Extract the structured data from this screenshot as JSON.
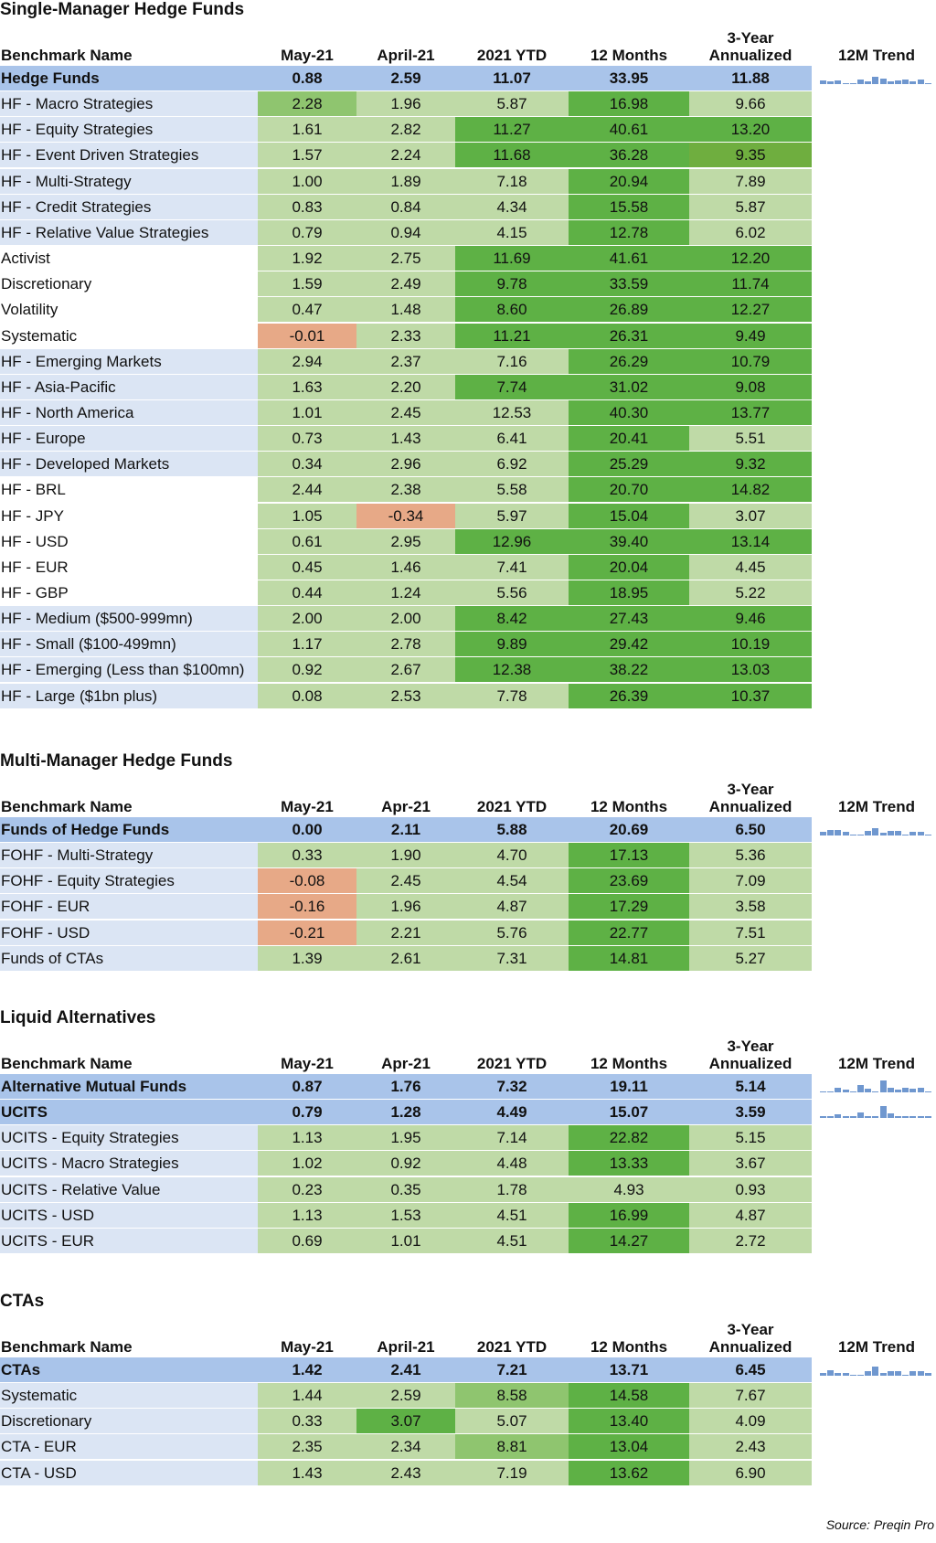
{
  "colors": {
    "name_blue": "#dbe5f4",
    "head_blue": "#a9c4ea",
    "light_green": "#bfdaa7",
    "mid_green": "#8fc56f",
    "dark_green": "#5eb145",
    "olive_green": "#6fae3f",
    "salmon": "#e7a987"
  },
  "source": "Source: Preqin Pro",
  "sections": [
    {
      "title": "Single-Manager Hedge Funds",
      "headers": {
        "name": "Benchmark Name",
        "cols": [
          "May-21",
          "April-21",
          "2021 YTD",
          "12 Months",
          "3-Year\nAnnualized"
        ],
        "trend": "12M Trend"
      },
      "rows": [
        {
          "name": "Hedge Funds",
          "values": [
            "0.88",
            "2.59",
            "11.07",
            "33.95",
            "11.88"
          ],
          "bold": true,
          "trend": [
            3,
            2,
            3,
            1,
            1,
            4,
            2,
            6,
            5,
            2,
            3,
            4,
            2,
            4,
            1
          ],
          "fills": [
            "H",
            "H",
            "H",
            "H",
            "H"
          ],
          "nameFill": "H"
        },
        {
          "name": "HF - Macro Strategies",
          "values": [
            "2.28",
            "1.96",
            "5.87",
            "16.98",
            "9.66"
          ],
          "fills": [
            "M",
            "L",
            "L",
            "D",
            "L"
          ],
          "nameFill": "N"
        },
        {
          "name": "HF - Equity Strategies",
          "values": [
            "1.61",
            "2.82",
            "11.27",
            "40.61",
            "13.20"
          ],
          "fills": [
            "L",
            "L",
            "D",
            "D",
            "D"
          ],
          "nameFill": "N"
        },
        {
          "name": "HF - Event Driven Strategies",
          "values": [
            "1.57",
            "2.24",
            "11.68",
            "36.28",
            "9.35"
          ],
          "fills": [
            "L",
            "L",
            "D",
            "D",
            "O"
          ],
          "nameFill": "N"
        },
        {
          "name": "HF - Multi-Strategy",
          "values": [
            "1.00",
            "1.89",
            "7.18",
            "20.94",
            "7.89"
          ],
          "fills": [
            "L",
            "L",
            "L",
            "D",
            "L"
          ],
          "nameFill": "N"
        },
        {
          "name": "HF - Credit Strategies",
          "values": [
            "0.83",
            "0.84",
            "4.34",
            "15.58",
            "5.87"
          ],
          "fills": [
            "L",
            "L",
            "L",
            "D",
            "L"
          ],
          "nameFill": "N"
        },
        {
          "name": "HF - Relative Value Strategies",
          "values": [
            "0.79",
            "0.94",
            "4.15",
            "12.78",
            "6.02"
          ],
          "fills": [
            "L",
            "L",
            "L",
            "D",
            "L"
          ],
          "nameFill": "N"
        },
        {
          "name": "Activist",
          "values": [
            "1.92",
            "2.75",
            "11.69",
            "41.61",
            "12.20"
          ],
          "fills": [
            "L",
            "L",
            "D",
            "D",
            "D"
          ],
          "nameFill": "W"
        },
        {
          "name": "Discretionary",
          "values": [
            "1.59",
            "2.49",
            "9.78",
            "33.59",
            "11.74"
          ],
          "fills": [
            "L",
            "L",
            "D",
            "D",
            "D"
          ],
          "nameFill": "W"
        },
        {
          "name": "Volatility",
          "values": [
            "0.47",
            "1.48",
            "8.60",
            "26.89",
            "12.27"
          ],
          "fills": [
            "L",
            "L",
            "D",
            "D",
            "D"
          ],
          "nameFill": "W"
        },
        {
          "name": "Systematic",
          "values": [
            "-0.01",
            "2.33",
            "11.21",
            "26.31",
            "9.49"
          ],
          "fills": [
            "S",
            "L",
            "D",
            "D",
            "D"
          ],
          "nameFill": "W"
        },
        {
          "name": "HF - Emerging Markets",
          "values": [
            "2.94",
            "2.37",
            "7.16",
            "26.29",
            "10.79"
          ],
          "fills": [
            "L",
            "L",
            "L",
            "D",
            "D"
          ],
          "nameFill": "N"
        },
        {
          "name": "HF - Asia-Pacific",
          "values": [
            "1.63",
            "2.20",
            "7.74",
            "31.02",
            "9.08"
          ],
          "fills": [
            "L",
            "L",
            "D",
            "D",
            "D"
          ],
          "nameFill": "N"
        },
        {
          "name": "HF - North America",
          "values": [
            "1.01",
            "2.45",
            "12.53",
            "40.30",
            "13.77"
          ],
          "fills": [
            "L",
            "L",
            "L",
            "D",
            "D"
          ],
          "nameFill": "N"
        },
        {
          "name": "HF - Europe",
          "values": [
            "0.73",
            "1.43",
            "6.41",
            "20.41",
            "5.51"
          ],
          "fills": [
            "L",
            "L",
            "L",
            "D",
            "L"
          ],
          "nameFill": "N"
        },
        {
          "name": "HF - Developed Markets",
          "values": [
            "0.34",
            "2.96",
            "6.92",
            "25.29",
            "9.32"
          ],
          "fills": [
            "L",
            "L",
            "L",
            "D",
            "D"
          ],
          "nameFill": "N"
        },
        {
          "name": "HF - BRL",
          "values": [
            "2.44",
            "2.38",
            "5.58",
            "20.70",
            "14.82"
          ],
          "fills": [
            "L",
            "L",
            "L",
            "D",
            "D"
          ],
          "nameFill": "W"
        },
        {
          "name": "HF - JPY",
          "values": [
            "1.05",
            "-0.34",
            "5.97",
            "15.04",
            "3.07"
          ],
          "fills": [
            "L",
            "S",
            "L",
            "D",
            "L"
          ],
          "nameFill": "W"
        },
        {
          "name": "HF - USD",
          "values": [
            "0.61",
            "2.95",
            "12.96",
            "39.40",
            "13.14"
          ],
          "fills": [
            "L",
            "L",
            "D",
            "D",
            "D"
          ],
          "nameFill": "W"
        },
        {
          "name": "HF - EUR",
          "values": [
            "0.45",
            "1.46",
            "7.41",
            "20.04",
            "4.45"
          ],
          "fills": [
            "L",
            "L",
            "L",
            "D",
            "L"
          ],
          "nameFill": "W"
        },
        {
          "name": "HF - GBP",
          "values": [
            "0.44",
            "1.24",
            "5.56",
            "18.95",
            "5.22"
          ],
          "fills": [
            "L",
            "L",
            "L",
            "D",
            "L"
          ],
          "nameFill": "W"
        },
        {
          "name": "HF - Medium ($500-999mn)",
          "values": [
            "2.00",
            "2.00",
            "8.42",
            "27.43",
            "9.46"
          ],
          "fills": [
            "L",
            "L",
            "D",
            "D",
            "D"
          ],
          "nameFill": "N"
        },
        {
          "name": "HF - Small ($100-499mn)",
          "values": [
            "1.17",
            "2.78",
            "9.89",
            "29.42",
            "10.19"
          ],
          "fills": [
            "L",
            "L",
            "D",
            "D",
            "D"
          ],
          "nameFill": "N"
        },
        {
          "name": "HF - Emerging (Less than $100mn)",
          "values": [
            "0.92",
            "2.67",
            "12.38",
            "38.22",
            "13.03"
          ],
          "fills": [
            "L",
            "L",
            "D",
            "D",
            "D"
          ],
          "nameFill": "N"
        },
        {
          "name": "HF - Large ($1bn plus)",
          "values": [
            "0.08",
            "2.53",
            "7.78",
            "26.39",
            "10.37"
          ],
          "fills": [
            "L",
            "L",
            "L",
            "D",
            "D"
          ],
          "nameFill": "N"
        }
      ]
    },
    {
      "title": "Multi-Manager Hedge Funds",
      "headers": {
        "name": "Benchmark Name",
        "cols": [
          "May-21",
          "Apr-21",
          "2021 YTD",
          "12 Months",
          "3-Year\nAnnualized"
        ],
        "trend": "12M Trend"
      },
      "rows": [
        {
          "name": "Funds of Hedge Funds",
          "values": [
            "0.00",
            "2.11",
            "5.88",
            "20.69",
            "6.50"
          ],
          "bold": true,
          "trend": [
            3,
            5,
            5,
            3,
            1,
            1,
            4,
            6,
            2,
            4,
            4,
            1,
            3,
            3,
            1
          ],
          "fills": [
            "H",
            "H",
            "H",
            "H",
            "H"
          ],
          "nameFill": "H"
        },
        {
          "name": "FOHF - Multi-Strategy",
          "values": [
            "0.33",
            "1.90",
            "4.70",
            "17.13",
            "5.36"
          ],
          "fills": [
            "L",
            "L",
            "L",
            "D",
            "L"
          ],
          "nameFill": "N"
        },
        {
          "name": "FOHF - Equity Strategies",
          "values": [
            "-0.08",
            "2.45",
            "4.54",
            "23.69",
            "7.09"
          ],
          "fills": [
            "S",
            "L",
            "L",
            "D",
            "L"
          ],
          "nameFill": "N"
        },
        {
          "name": "FOHF - EUR",
          "values": [
            "-0.16",
            "1.96",
            "4.87",
            "17.29",
            "3.58"
          ],
          "fills": [
            "S",
            "L",
            "L",
            "D",
            "L"
          ],
          "nameFill": "N"
        },
        {
          "name": "FOHF - USD",
          "values": [
            "-0.21",
            "2.21",
            "5.76",
            "22.77",
            "7.51"
          ],
          "fills": [
            "S",
            "L",
            "L",
            "D",
            "L"
          ],
          "nameFill": "N"
        },
        {
          "name": "Funds of CTAs",
          "values": [
            "1.39",
            "2.61",
            "7.31",
            "14.81",
            "5.27"
          ],
          "fills": [
            "L",
            "L",
            "L",
            "D",
            "L"
          ],
          "nameFill": "N"
        }
      ]
    },
    {
      "title": "Liquid Alternatives",
      "headers": {
        "name": "Benchmark Name",
        "cols": [
          "May-21",
          "Apr-21",
          "2021 YTD",
          "12 Months",
          "3-Year\nAnnualized"
        ],
        "trend": "12M Trend"
      },
      "rows": [
        {
          "name": "Alternative Mutual Funds",
          "values": [
            "0.87",
            "1.76",
            "7.32",
            "19.11",
            "5.14"
          ],
          "bold": true,
          "trend": [
            1,
            1,
            4,
            2,
            1,
            6,
            3,
            1,
            10,
            4,
            2,
            4,
            3,
            4,
            1
          ],
          "fills": [
            "H",
            "H",
            "H",
            "H",
            "H"
          ],
          "nameFill": "H"
        },
        {
          "name": "UCITS",
          "values": [
            "0.79",
            "1.28",
            "4.49",
            "15.07",
            "3.59"
          ],
          "bold": true,
          "trend": [
            2,
            2,
            3,
            2,
            2,
            5,
            2,
            2,
            10,
            4,
            2,
            2,
            2,
            2,
            2
          ],
          "fills": [
            "H",
            "H",
            "H",
            "H",
            "H"
          ],
          "nameFill": "H"
        },
        {
          "name": "UCITS - Equity Strategies",
          "values": [
            "1.13",
            "1.95",
            "7.14",
            "22.82",
            "5.15"
          ],
          "fills": [
            "L",
            "L",
            "L",
            "D",
            "L"
          ],
          "nameFill": "N"
        },
        {
          "name": "UCITS - Macro Strategies",
          "values": [
            "1.02",
            "0.92",
            "4.48",
            "13.33",
            "3.67"
          ],
          "fills": [
            "L",
            "L",
            "L",
            "D",
            "L"
          ],
          "nameFill": "N"
        },
        {
          "name": "UCITS - Relative Value",
          "values": [
            "0.23",
            "0.35",
            "1.78",
            "4.93",
            "0.93"
          ],
          "fills": [
            "L",
            "L",
            "L",
            "L",
            "L"
          ],
          "nameFill": "N"
        },
        {
          "name": "UCITS - USD",
          "values": [
            "1.13",
            "1.53",
            "4.51",
            "16.99",
            "4.87"
          ],
          "fills": [
            "L",
            "L",
            "L",
            "D",
            "L"
          ],
          "nameFill": "N"
        },
        {
          "name": "UCITS - EUR",
          "values": [
            "0.69",
            "1.01",
            "4.51",
            "14.27",
            "2.72"
          ],
          "fills": [
            "L",
            "L",
            "L",
            "D",
            "L"
          ],
          "nameFill": "N"
        }
      ]
    },
    {
      "title": "CTAs",
      "headers": {
        "name": "Benchmark Name",
        "cols": [
          "May-21",
          "April-21",
          "2021 YTD",
          "12 Months",
          "3-Year\nAnnualized"
        ],
        "trend": "12M Trend"
      },
      "rows": [
        {
          "name": "CTAs",
          "values": [
            "1.42",
            "2.41",
            "7.21",
            "13.71",
            "6.45"
          ],
          "bold": true,
          "trend": [
            2,
            5,
            2,
            2,
            1,
            1,
            4,
            8,
            2,
            4,
            4,
            1,
            4,
            4,
            2
          ],
          "fills": [
            "H",
            "H",
            "H",
            "H",
            "H"
          ],
          "nameFill": "H"
        },
        {
          "name": "Systematic",
          "values": [
            "1.44",
            "2.59",
            "8.58",
            "14.58",
            "7.67"
          ],
          "fills": [
            "L",
            "L",
            "M",
            "D",
            "L"
          ],
          "nameFill": "N"
        },
        {
          "name": "Discretionary",
          "values": [
            "0.33",
            "3.07",
            "5.07",
            "13.40",
            "4.09"
          ],
          "fills": [
            "L",
            "D",
            "L",
            "D",
            "L"
          ],
          "nameFill": "N"
        },
        {
          "name": "CTA - EUR",
          "values": [
            "2.35",
            "2.34",
            "8.81",
            "13.04",
            "2.43"
          ],
          "fills": [
            "L",
            "L",
            "M",
            "D",
            "L"
          ],
          "nameFill": "N"
        },
        {
          "name": "CTA - USD",
          "values": [
            "1.43",
            "2.43",
            "7.19",
            "13.62",
            "6.90"
          ],
          "fills": [
            "L",
            "L",
            "L",
            "D",
            "L"
          ],
          "nameFill": "N"
        }
      ]
    }
  ]
}
